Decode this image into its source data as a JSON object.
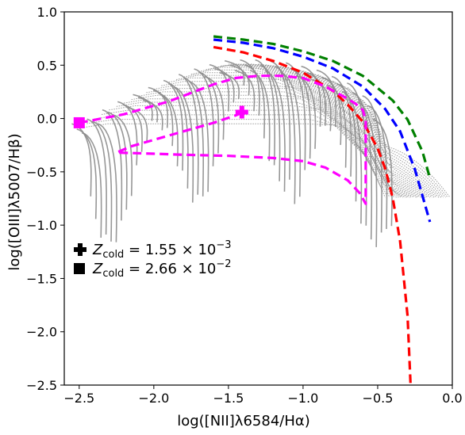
{
  "chart_data": {
    "type": "line",
    "xlabel": "log([NII]λ6584/Hα)",
    "ylabel": "log([OIII]λ5007/Hβ)",
    "xlim": [
      -2.6,
      0.0
    ],
    "ylim": [
      -2.5,
      1.0
    ],
    "xticks": [
      -2.5,
      -2.0,
      -1.5,
      -1.0,
      -0.5,
      0.0
    ],
    "xtick_labels": [
      "−2.5",
      "−2.0",
      "−1.5",
      "−1.0",
      "−0.5",
      "0.0"
    ],
    "yticks": [
      -2.5,
      -2.0,
      -1.5,
      -1.0,
      -0.5,
      0.0,
      0.5,
      1.0
    ],
    "ytick_labels": [
      "−2.5",
      "−2.0",
      "−1.5",
      "−1.0",
      "−0.5",
      "0.0",
      "0.5",
      "1.0"
    ],
    "grid": false,
    "series": [
      {
        "color": "#008000",
        "style": "dashed",
        "x": [
          -1.6,
          -1.4,
          -1.2,
          -1.0,
          -0.8,
          -0.6,
          -0.4,
          -0.3,
          -0.2,
          -0.15
        ],
        "y": [
          0.77,
          0.74,
          0.7,
          0.63,
          0.54,
          0.4,
          0.17,
          -0.01,
          -0.31,
          -0.56
        ]
      },
      {
        "color": "#0000ff",
        "style": "dashed",
        "x": [
          -1.6,
          -1.4,
          -1.2,
          -1.0,
          -0.8,
          -0.6,
          -0.45,
          -0.35,
          -0.25,
          -0.15
        ],
        "y": [
          0.74,
          0.71,
          0.66,
          0.58,
          0.47,
          0.3,
          0.09,
          -0.12,
          -0.48,
          -0.97
        ]
      },
      {
        "color": "#ff0000",
        "style": "dashed",
        "x": [
          -1.6,
          -1.4,
          -1.2,
          -1.0,
          -0.8,
          -0.7,
          -0.6,
          -0.5,
          -0.45,
          -0.4,
          -0.35,
          -0.3,
          -0.28
        ],
        "y": [
          0.67,
          0.62,
          0.54,
          0.43,
          0.26,
          0.13,
          -0.03,
          -0.28,
          -0.47,
          -0.74,
          -1.15,
          -1.85,
          -2.48
        ]
      },
      {
        "color": "#ff00ff",
        "style": "dashed",
        "x": [
          -2.5,
          -2.2,
          -1.9,
          -1.6,
          -1.45,
          -1.3,
          -1.15,
          -1.0,
          -0.85,
          -0.72,
          -0.65,
          -0.6,
          -0.58,
          -0.58,
          -0.62,
          -0.7,
          -0.85,
          -1.0,
          -1.2,
          -1.5,
          -1.8,
          -2.0,
          -2.25,
          -2.15,
          -2.0,
          -1.8,
          -1.6,
          -1.45,
          -1.4
        ],
        "y": [
          -0.04,
          0.04,
          0.16,
          0.32,
          0.38,
          0.4,
          0.4,
          0.38,
          0.3,
          0.2,
          0.14,
          0.08,
          -0.02,
          -0.8,
          -0.7,
          -0.58,
          -0.46,
          -0.4,
          -0.37,
          -0.35,
          -0.34,
          -0.33,
          -0.32,
          -0.26,
          -0.2,
          -0.12,
          -0.04,
          0.03,
          0.06
        ]
      }
    ],
    "markers": [
      {
        "shape": "square",
        "color": "#ff00ff",
        "x": -2.5,
        "y": -0.04
      },
      {
        "shape": "plus",
        "color": "#ff00ff",
        "x": -1.41,
        "y": 0.06
      }
    ],
    "grey_grid": {
      "color": "#8c8c8c",
      "note_family": "model grid lines",
      "upper_envelope_x": [
        -2.5,
        -2.3,
        -2.1,
        -1.9,
        -1.7,
        -1.5,
        -1.3,
        -1.1,
        -0.9,
        -0.7,
        -0.55,
        -0.45
      ],
      "upper_envelope_y": [
        -0.05,
        0.12,
        0.25,
        0.38,
        0.48,
        0.55,
        0.55,
        0.52,
        0.45,
        0.33,
        0.15,
        -0.2
      ]
    },
    "legend": {
      "placement": "center-left",
      "entries": [
        {
          "marker": "plus",
          "label_prefix": "Z",
          "label_sub": "cold",
          "label_value": " = 1.55 × 10",
          "label_exp": "−3"
        },
        {
          "marker": "square",
          "label_prefix": "Z",
          "label_sub": "cold",
          "label_value": " = 2.66 × 10",
          "label_exp": "−2"
        }
      ]
    }
  }
}
